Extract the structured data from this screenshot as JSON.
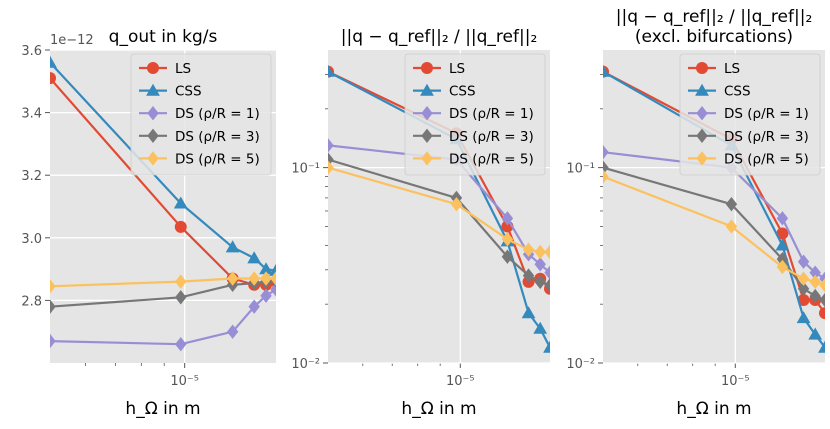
{
  "chart_data": [
    {
      "type": "line",
      "title": "q_out in kg/s",
      "xlabel": "h_Ω in m",
      "ylabel": "",
      "xscale": "log",
      "yscale": "linear",
      "xlim": [
        5e-06,
        1.6e-05
      ],
      "ylim": [
        2.6,
        3.6
      ],
      "y_multiplier": "1e−12",
      "yticks": [
        "2.8",
        "3.0",
        "3.2",
        "3.4",
        "3.6"
      ],
      "xticks": [
        "10⁻⁵"
      ],
      "legend_position": "top-right",
      "series": [
        {
          "name": "LS",
          "x": [
            5e-06,
            9.8e-06,
            1.28e-05,
            1.43e-05,
            1.52e-05,
            1.6e-05
          ],
          "y": [
            3.51,
            3.035,
            2.87,
            2.85,
            2.85,
            2.86
          ]
        },
        {
          "name": "CSS",
          "x": [
            5e-06,
            9.8e-06,
            1.28e-05,
            1.43e-05,
            1.52e-05,
            1.6e-05
          ],
          "y": [
            3.56,
            3.11,
            2.97,
            2.935,
            2.9,
            2.895
          ]
        },
        {
          "name": "DS (ρ/R = 1)",
          "x": [
            5e-06,
            9.8e-06,
            1.28e-05,
            1.43e-05,
            1.52e-05,
            1.6e-05
          ],
          "y": [
            2.67,
            2.66,
            2.7,
            2.78,
            2.815,
            2.835
          ]
        },
        {
          "name": "DS (ρ/R = 3)",
          "x": [
            5e-06,
            9.8e-06,
            1.28e-05,
            1.43e-05,
            1.52e-05,
            1.6e-05
          ],
          "y": [
            2.78,
            2.81,
            2.85,
            2.855,
            2.86,
            2.865
          ]
        },
        {
          "name": "DS (ρ/R = 5)",
          "x": [
            5e-06,
            9.8e-06,
            1.28e-05,
            1.43e-05,
            1.52e-05,
            1.6e-05
          ],
          "y": [
            2.845,
            2.86,
            2.87,
            2.87,
            2.87,
            2.87
          ]
        }
      ]
    },
    {
      "type": "line",
      "title": "||q − q_ref||₂ / ||q_ref||₂",
      "xlabel": "h_Ω in m",
      "ylabel": "",
      "xscale": "log",
      "yscale": "log",
      "xlim": [
        5e-06,
        1.6e-05
      ],
      "ylim": [
        0.01,
        0.4
      ],
      "yticks": [
        "10⁻²",
        "10⁻¹"
      ],
      "xticks": [
        "10⁻⁵"
      ],
      "legend_position": "top-right",
      "series": [
        {
          "name": "LS",
          "x": [
            5e-06,
            9.8e-06,
            1.28e-05,
            1.43e-05,
            1.52e-05,
            1.6e-05
          ],
          "y": [
            0.31,
            0.15,
            0.05,
            0.026,
            0.027,
            0.024
          ]
        },
        {
          "name": "CSS",
          "x": [
            5e-06,
            9.8e-06,
            1.28e-05,
            1.43e-05,
            1.52e-05,
            1.6e-05
          ],
          "y": [
            0.31,
            0.14,
            0.042,
            0.018,
            0.015,
            0.012
          ]
        },
        {
          "name": "DS (ρ/R = 1)",
          "x": [
            5e-06,
            9.8e-06,
            1.28e-05,
            1.43e-05,
            1.52e-05,
            1.6e-05
          ],
          "y": [
            0.13,
            0.11,
            0.055,
            0.036,
            0.032,
            0.029
          ]
        },
        {
          "name": "DS (ρ/R = 3)",
          "x": [
            5e-06,
            9.8e-06,
            1.28e-05,
            1.43e-05,
            1.52e-05,
            1.6e-05
          ],
          "y": [
            0.11,
            0.07,
            0.035,
            0.028,
            0.026,
            0.025
          ]
        },
        {
          "name": "DS (ρ/R = 5)",
          "x": [
            5e-06,
            9.8e-06,
            1.28e-05,
            1.43e-05,
            1.52e-05,
            1.6e-05
          ],
          "y": [
            0.1,
            0.065,
            0.043,
            0.038,
            0.037,
            0.037
          ]
        }
      ]
    },
    {
      "type": "line",
      "title": "||q − q_ref||₂ / ||q_ref||₂",
      "subtitle": "(excl. bifurcations)",
      "xlabel": "h_Ω in m",
      "ylabel": "",
      "xscale": "log",
      "yscale": "log",
      "xlim": [
        5e-06,
        1.6e-05
      ],
      "ylim": [
        0.01,
        0.4
      ],
      "yticks": [
        "10⁻²",
        "10⁻¹"
      ],
      "xticks": [
        "10⁻⁵"
      ],
      "legend_position": "top-right",
      "series": [
        {
          "name": "LS",
          "x": [
            5e-06,
            9.8e-06,
            1.28e-05,
            1.43e-05,
            1.52e-05,
            1.6e-05
          ],
          "y": [
            0.31,
            0.14,
            0.046,
            0.021,
            0.021,
            0.018
          ]
        },
        {
          "name": "CSS",
          "x": [
            5e-06,
            9.8e-06,
            1.28e-05,
            1.43e-05,
            1.52e-05,
            1.6e-05
          ],
          "y": [
            0.31,
            0.13,
            0.04,
            0.017,
            0.014,
            0.012
          ]
        },
        {
          "name": "DS (ρ/R = 1)",
          "x": [
            5e-06,
            9.8e-06,
            1.28e-05,
            1.43e-05,
            1.52e-05,
            1.6e-05
          ],
          "y": [
            0.12,
            0.1,
            0.055,
            0.033,
            0.029,
            0.027
          ]
        },
        {
          "name": "DS (ρ/R = 3)",
          "x": [
            5e-06,
            9.8e-06,
            1.28e-05,
            1.43e-05,
            1.52e-05,
            1.6e-05
          ],
          "y": [
            0.1,
            0.065,
            0.034,
            0.024,
            0.022,
            0.021
          ]
        },
        {
          "name": "DS (ρ/R = 5)",
          "x": [
            5e-06,
            9.8e-06,
            1.28e-05,
            1.43e-05,
            1.52e-05,
            1.6e-05
          ],
          "y": [
            0.09,
            0.05,
            0.031,
            0.027,
            0.026,
            0.025
          ]
        }
      ]
    }
  ],
  "style": {
    "plot_bg": "#e5e5e5",
    "grid": "#ffffff",
    "series_colors": [
      "#e24a33",
      "#348abd",
      "#988ed5",
      "#777777",
      "#fbc15e"
    ],
    "markers": [
      "circle",
      "triangle",
      "diamond",
      "diamond",
      "diamond"
    ]
  }
}
